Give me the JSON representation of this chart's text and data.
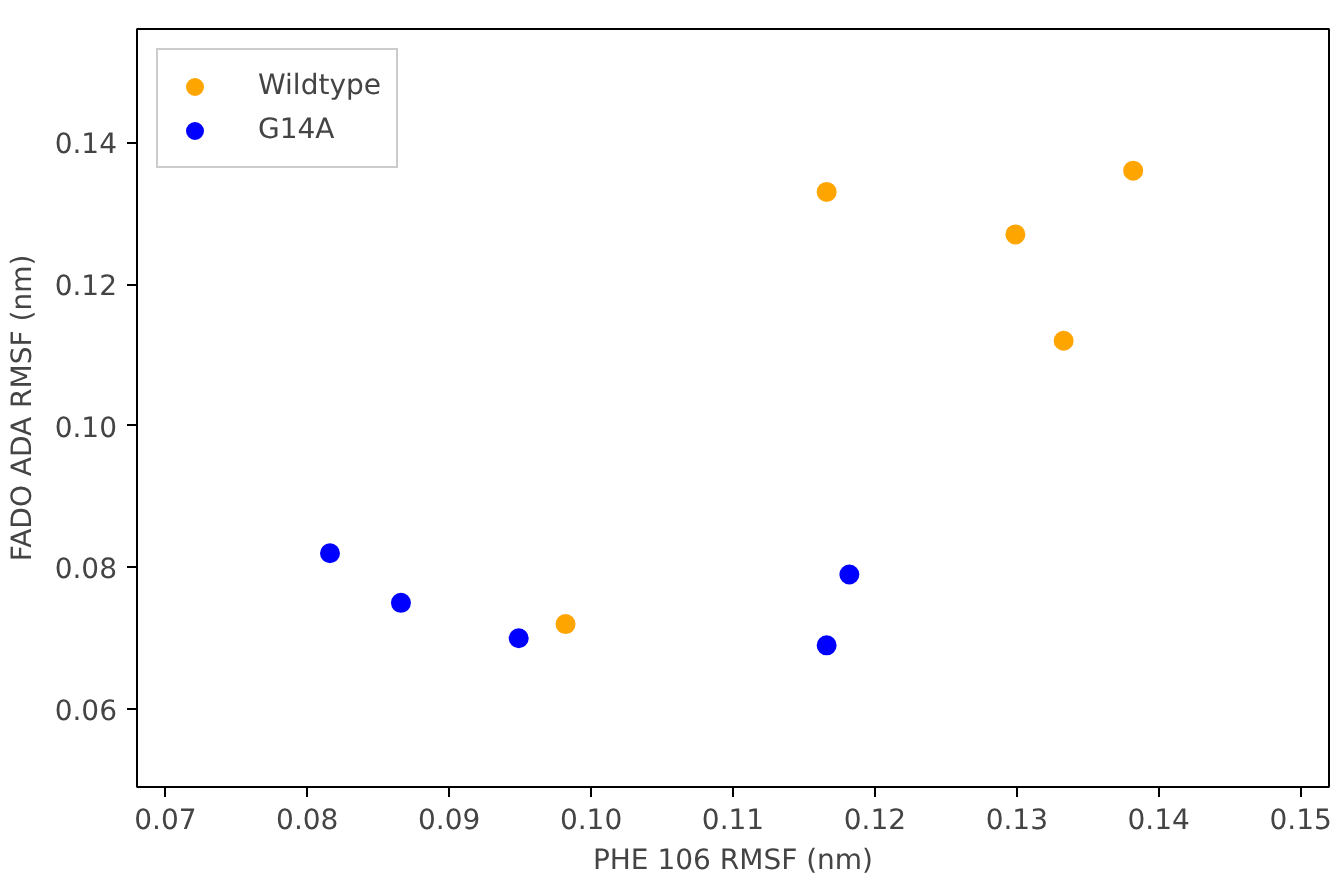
{
  "chart_data": {
    "type": "scatter",
    "xlabel": "PHE 106 RMSF (nm)",
    "ylabel": "FADO ADA RMSF (nm)",
    "xlim": [
      0.068,
      0.152
    ],
    "ylim": [
      0.049,
      0.156
    ],
    "xticks": [
      {
        "value": 0.07,
        "label": "0.07"
      },
      {
        "value": 0.08,
        "label": "0.08"
      },
      {
        "value": 0.09,
        "label": "0.09"
      },
      {
        "value": 0.1,
        "label": "0.10"
      },
      {
        "value": 0.11,
        "label": "0.11"
      },
      {
        "value": 0.12,
        "label": "0.12"
      },
      {
        "value": 0.13,
        "label": "0.13"
      },
      {
        "value": 0.14,
        "label": "0.14"
      },
      {
        "value": 0.15,
        "label": "0.15"
      }
    ],
    "yticks": [
      {
        "value": 0.06,
        "label": "0.06"
      },
      {
        "value": 0.08,
        "label": "0.08"
      },
      {
        "value": 0.1,
        "label": "0.10"
      },
      {
        "value": 0.12,
        "label": "0.12"
      },
      {
        "value": 0.14,
        "label": "0.14"
      }
    ],
    "legend": "top left",
    "marker": "circle",
    "series": [
      {
        "name": "Wildtype",
        "color": "#ffa500",
        "x": [
          0.1166,
          0.1299,
          0.1382,
          0.1333,
          0.0982
        ],
        "values": [
          0.133,
          0.127,
          0.136,
          0.112,
          0.072
        ]
      },
      {
        "name": "G14A",
        "color": "#0000ff",
        "x": [
          0.0816,
          0.0866,
          0.0949,
          0.1166,
          0.1182
        ],
        "values": [
          0.082,
          0.075,
          0.07,
          0.069,
          0.079
        ]
      }
    ]
  }
}
